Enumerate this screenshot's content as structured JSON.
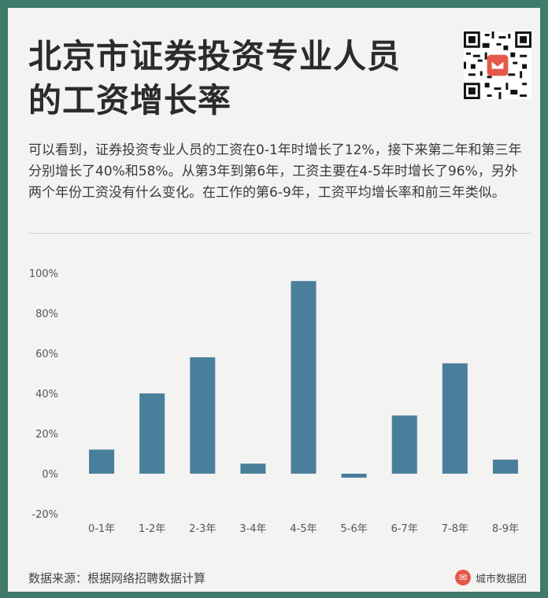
{
  "title_line1": "北京市证券投资专业人员",
  "title_line2": "的工资增长率",
  "description": "可以看到，证券投资专业人员的工资在0-1年时增长了12%，接下来第二年和第三年分别增长了40%和58%。从第3年到第6年，工资主要在4-5年时增长了96%，另外两个年份工资没有什么变化。在工作的第6-9年，工资平均增长率和前三年类似。",
  "source": "数据来源：根据网络招聘数据计算",
  "brand_name": "城市数据团",
  "qr_icon": "qr-code-icon",
  "colors": {
    "bar": "#4a7f9b",
    "background": "#3f7a6a",
    "card": "#f3f3f1",
    "logo": "#e5584a"
  },
  "chart_data": {
    "type": "bar",
    "categories": [
      "0-1年",
      "1-2年",
      "2-3年",
      "3-4年",
      "4-5年",
      "5-6年",
      "6-7年",
      "7-8年",
      "8-9年"
    ],
    "values": [
      12,
      40,
      58,
      5,
      96,
      -2,
      29,
      55,
      7
    ],
    "ylim": [
      -20,
      100
    ],
    "yticks": [
      "100%",
      "80%",
      "60%",
      "40%",
      "20%",
      "0%",
      "-20%"
    ],
    "ytick_values": [
      100,
      80,
      60,
      40,
      20,
      0,
      -20
    ],
    "grid": false
  }
}
